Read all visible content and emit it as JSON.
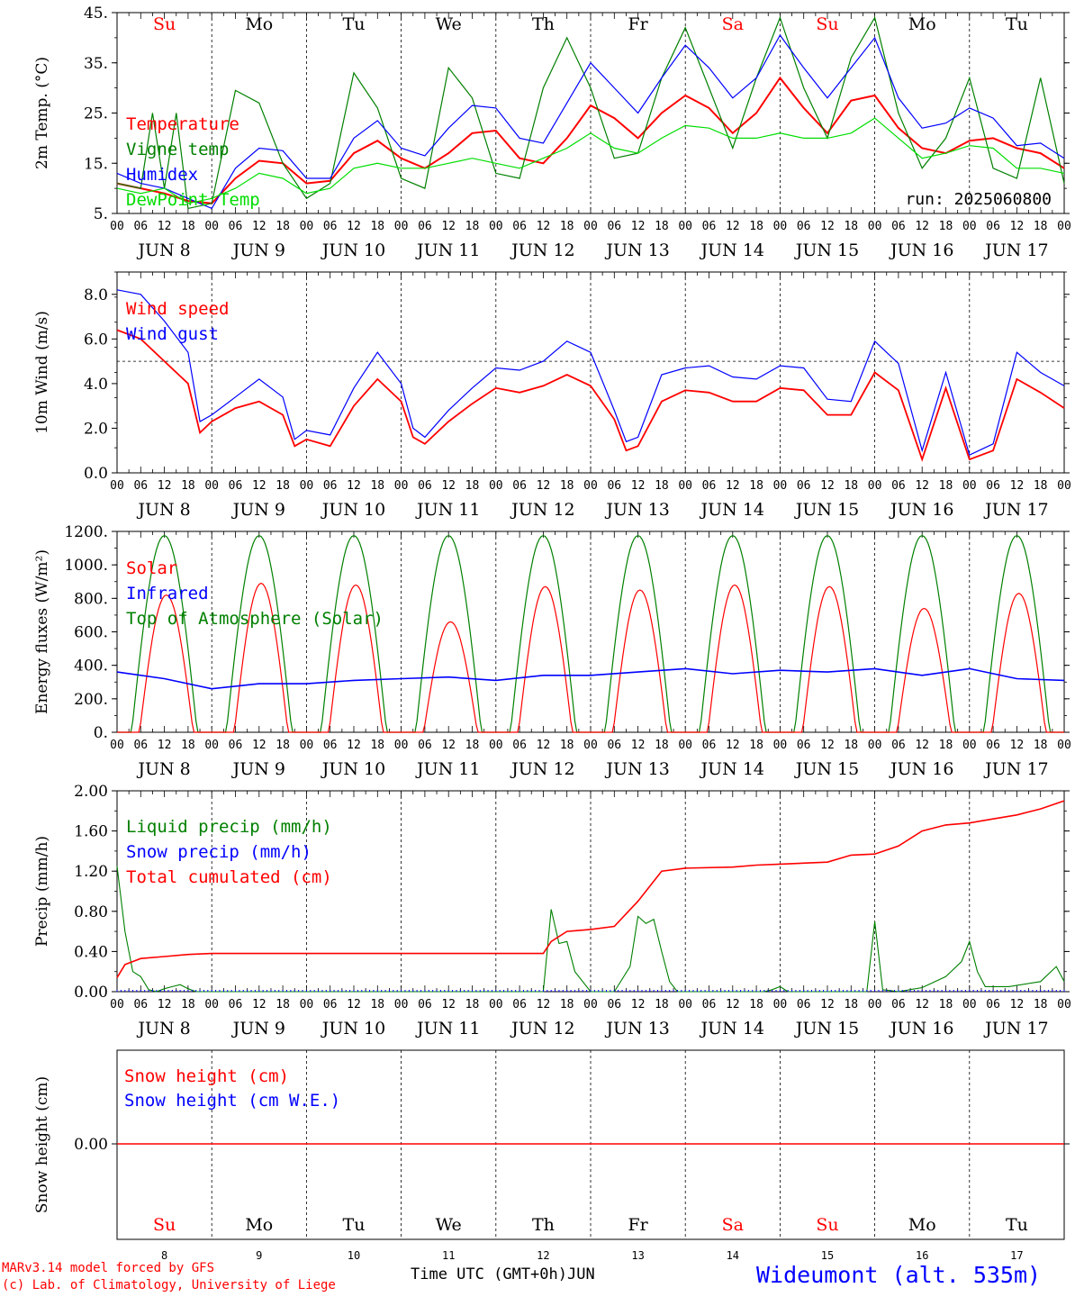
{
  "run_label": "run: 2025060800",
  "credits": [
    "MARv3.14 model forced by GFS",
    "(c) Lab. of Climatology, University of Liege"
  ],
  "station": "Wideumont (alt. 535m)",
  "time_axis_label": "Time UTC (GMT+0h)",
  "month": "JUN",
  "days": [
    "8",
    "9",
    "10",
    "11",
    "12",
    "13",
    "14",
    "15",
    "16",
    "17"
  ],
  "weekdays": [
    "Su",
    "Mo",
    "Tu",
    "We",
    "Th",
    "Fr",
    "Sa",
    "Su",
    "Mo",
    "Tu"
  ],
  "weekend_flags": [
    true,
    false,
    false,
    false,
    false,
    false,
    true,
    true,
    false,
    false
  ],
  "hour_ticks": [
    "00",
    "06",
    "12",
    "18"
  ],
  "hour_end": "00",
  "colors": {
    "red": "#ff0000",
    "green": "#008000",
    "blue": "#0000ff",
    "lime": "#00dd00"
  },
  "chart_data": [
    {
      "type": "line",
      "ylabel": "2m Temp. (°C)",
      "ylim": [
        5,
        45
      ],
      "yticks": [
        "5.",
        "15.",
        "25.",
        "35.",
        "45."
      ],
      "x_unit": "hours since JUN 8 00 UTC",
      "series": [
        {
          "name": "Temperature",
          "color": "red",
          "x": [
            0,
            6,
            12,
            18,
            24,
            30,
            36,
            42,
            48,
            54,
            60,
            66,
            72,
            78,
            84,
            90,
            96,
            102,
            108,
            114,
            120,
            126,
            132,
            138,
            144,
            150,
            156,
            162,
            168,
            174,
            180,
            186,
            192,
            198,
            204,
            210,
            216,
            222,
            228,
            234,
            240
          ],
          "y": [
            11,
            10,
            9,
            7.5,
            7,
            12,
            15.5,
            15,
            11,
            11.5,
            17,
            19.5,
            16,
            14,
            17,
            21,
            21.5,
            16,
            15,
            20,
            26.5,
            24,
            20,
            25,
            28.5,
            26,
            21,
            25,
            32,
            26,
            21,
            27.5,
            28.5,
            22,
            18,
            17,
            19.5,
            20,
            18,
            17,
            14
          ]
        },
        {
          "name": "Vigne temp",
          "color": "green",
          "x": [
            0,
            6,
            9,
            12,
            15,
            18,
            24,
            30,
            36,
            42,
            48,
            54,
            60,
            66,
            72,
            78,
            84,
            90,
            96,
            102,
            108,
            114,
            120,
            126,
            132,
            138,
            144,
            150,
            156,
            162,
            168,
            174,
            180,
            186,
            192,
            198,
            204,
            210,
            216,
            222,
            228,
            234,
            240
          ],
          "y": [
            11,
            10,
            25,
            10,
            25,
            6,
            7,
            29.5,
            27,
            15,
            8,
            11,
            33,
            26,
            12,
            10,
            34,
            28,
            13,
            12,
            30,
            40,
            30,
            16,
            17,
            32,
            42,
            30,
            18,
            32,
            44,
            30,
            20,
            36,
            44,
            25,
            14,
            20,
            32,
            14,
            12,
            32,
            11
          ]
        },
        {
          "name": "Humidex",
          "color": "blue",
          "x": [
            0,
            6,
            12,
            18,
            24,
            30,
            36,
            42,
            48,
            54,
            60,
            66,
            72,
            78,
            84,
            90,
            96,
            102,
            108,
            114,
            120,
            126,
            132,
            138,
            144,
            150,
            156,
            162,
            168,
            174,
            180,
            186,
            192,
            198,
            204,
            210,
            216,
            222,
            228,
            234,
            240
          ],
          "y": [
            13,
            11,
            10,
            8,
            6,
            14,
            18,
            17.5,
            12,
            12,
            20,
            23.5,
            18,
            16.5,
            22,
            26.5,
            26,
            20,
            19,
            27,
            35,
            30,
            25,
            32,
            38.5,
            34,
            28,
            32,
            40.5,
            34,
            28,
            34,
            40,
            28,
            22,
            23,
            26,
            24,
            18.5,
            19,
            16
          ]
        },
        {
          "name": "DewPoint Temp",
          "color": "lime",
          "x": [
            0,
            6,
            12,
            18,
            24,
            30,
            36,
            42,
            48,
            54,
            60,
            66,
            72,
            78,
            84,
            90,
            96,
            102,
            108,
            114,
            120,
            126,
            132,
            138,
            144,
            150,
            156,
            162,
            168,
            174,
            180,
            186,
            192,
            198,
            204,
            210,
            216,
            222,
            228,
            234,
            240
          ],
          "y": [
            10,
            9,
            10,
            7,
            8,
            10,
            13,
            12,
            9,
            10,
            14,
            15,
            14,
            14,
            15,
            16,
            15,
            14,
            16,
            18,
            21,
            18,
            17,
            20,
            22.5,
            22,
            20,
            20,
            21,
            20,
            20,
            21,
            24,
            20,
            16,
            17,
            18.5,
            18,
            14,
            14,
            13
          ]
        }
      ]
    },
    {
      "type": "line",
      "ylabel": "10m Wind (m/s)",
      "ylim": [
        0,
        9
      ],
      "yticks": [
        "0.0",
        "2.0",
        "4.0",
        "6.0",
        "8.0"
      ],
      "reference_line": 5.0,
      "series": [
        {
          "name": "Wind speed",
          "color": "red",
          "x": [
            0,
            6,
            12,
            18,
            21,
            24,
            30,
            36,
            42,
            45,
            48,
            54,
            60,
            66,
            72,
            75,
            78,
            84,
            90,
            96,
            102,
            108,
            114,
            120,
            126,
            129,
            132,
            138,
            144,
            150,
            156,
            162,
            168,
            174,
            180,
            186,
            192,
            198,
            204,
            210,
            216,
            222,
            228,
            234,
            240
          ],
          "y": [
            6.4,
            6.0,
            5.0,
            4.0,
            1.8,
            2.3,
            2.9,
            3.2,
            2.6,
            1.2,
            1.5,
            1.2,
            3.0,
            4.2,
            3.2,
            1.6,
            1.3,
            2.3,
            3.1,
            3.8,
            3.6,
            3.9,
            4.4,
            3.9,
            2.4,
            1.0,
            1.2,
            3.2,
            3.7,
            3.6,
            3.2,
            3.2,
            3.8,
            3.7,
            2.6,
            2.6,
            4.5,
            3.7,
            0.6,
            3.8,
            0.6,
            1.0,
            4.2,
            3.6,
            2.9
          ]
        },
        {
          "name": "Wind gust",
          "color": "blue",
          "x": [
            0,
            6,
            12,
            18,
            21,
            24,
            30,
            36,
            42,
            45,
            48,
            54,
            60,
            66,
            72,
            75,
            78,
            84,
            90,
            96,
            102,
            108,
            114,
            120,
            126,
            129,
            132,
            138,
            144,
            150,
            156,
            162,
            168,
            174,
            180,
            186,
            192,
            198,
            204,
            210,
            216,
            222,
            228,
            234,
            240
          ],
          "y": [
            8.2,
            8.0,
            6.8,
            5.4,
            2.3,
            2.6,
            3.4,
            4.2,
            3.4,
            1.5,
            1.9,
            1.7,
            3.8,
            5.4,
            4.0,
            2.0,
            1.6,
            2.8,
            3.8,
            4.7,
            4.6,
            5.0,
            5.9,
            5.4,
            2.8,
            1.4,
            1.6,
            4.4,
            4.7,
            4.8,
            4.3,
            4.2,
            4.8,
            4.7,
            3.3,
            3.2,
            5.9,
            4.9,
            1.0,
            4.5,
            0.8,
            1.3,
            5.4,
            4.5,
            3.9
          ]
        }
      ]
    },
    {
      "type": "line",
      "ylabel": "Energy fluxes (W/m²)",
      "ylim": [
        0,
        1200
      ],
      "yticks": [
        "0.",
        "200.",
        "400.",
        "600.",
        "800.",
        "1000.",
        "1200."
      ],
      "series": [
        {
          "name": "Solar",
          "color": "red",
          "peaks": [
            820,
            890,
            880,
            660,
            870,
            850,
            880,
            870,
            740,
            830
          ]
        },
        {
          "name": "Infrared",
          "color": "blue",
          "x": [
            0,
            12,
            24,
            36,
            48,
            60,
            72,
            84,
            96,
            108,
            120,
            132,
            144,
            156,
            168,
            180,
            192,
            204,
            216,
            228,
            240
          ],
          "y": [
            360,
            320,
            260,
            290,
            290,
            310,
            320,
            330,
            310,
            340,
            340,
            360,
            380,
            350,
            370,
            360,
            380,
            340,
            380,
            320,
            310
          ]
        },
        {
          "name": "Top of Atmosphere (Solar)",
          "color": "green",
          "peak": 1175
        }
      ]
    },
    {
      "type": "line",
      "ylabel": "Precip (mm/h)",
      "ylim": [
        0,
        2
      ],
      "yticks": [
        "0.00",
        "0.40",
        "0.80",
        "1.20",
        "1.60",
        "2.00"
      ],
      "series": [
        {
          "name": "Liquid precip (mm/h)",
          "color": "green",
          "x": [
            0,
            2,
            4,
            6,
            8,
            10,
            12,
            14,
            16,
            18,
            20,
            108,
            110,
            112,
            114,
            116,
            120,
            126,
            130,
            132,
            134,
            136,
            138,
            140,
            142,
            164,
            166,
            168,
            170,
            190,
            192,
            194,
            198,
            204,
            210,
            214,
            216,
            218,
            220,
            226,
            234,
            238,
            240
          ],
          "y": [
            1.25,
            0.6,
            0.2,
            0.15,
            0.02,
            0.0,
            0.03,
            0.05,
            0.07,
            0.03,
            0.0,
            0.0,
            0.82,
            0.48,
            0.5,
            0.2,
            0.0,
            0.0,
            0.25,
            0.75,
            0.68,
            0.72,
            0.4,
            0.1,
            0.0,
            0.0,
            0.02,
            0.05,
            0.0,
            0.0,
            0.7,
            0.02,
            0.0,
            0.04,
            0.15,
            0.3,
            0.5,
            0.2,
            0.05,
            0.05,
            0.1,
            0.25,
            0.1
          ]
        },
        {
          "name": "Snow precip (mm/h)",
          "color": "blue",
          "x": [
            0,
            240
          ],
          "y": [
            0,
            0
          ]
        },
        {
          "name": "Total cumulated (cm)",
          "color": "red",
          "x": [
            0,
            2,
            6,
            12,
            18,
            24,
            108,
            110,
            114,
            120,
            126,
            132,
            138,
            144,
            156,
            162,
            168,
            180,
            186,
            192,
            198,
            204,
            210,
            216,
            222,
            228,
            234,
            240
          ],
          "y": [
            0.14,
            0.27,
            0.33,
            0.35,
            0.37,
            0.38,
            0.38,
            0.5,
            0.6,
            0.62,
            0.65,
            0.9,
            1.2,
            1.23,
            1.24,
            1.26,
            1.27,
            1.29,
            1.36,
            1.37,
            1.45,
            1.6,
            1.66,
            1.68,
            1.72,
            1.76,
            1.82,
            1.9
          ]
        }
      ]
    },
    {
      "type": "line",
      "ylabel": "Snow height (cm)",
      "yticks": [
        "0.00"
      ],
      "series": [
        {
          "name": "Snow height (cm)",
          "color": "red",
          "x": [
            0,
            240
          ],
          "y": [
            0,
            0
          ]
        },
        {
          "name": "Snow height (cm W.E.)",
          "color": "blue",
          "x": [
            0,
            240
          ],
          "y": [
            0,
            0
          ]
        }
      ]
    }
  ]
}
